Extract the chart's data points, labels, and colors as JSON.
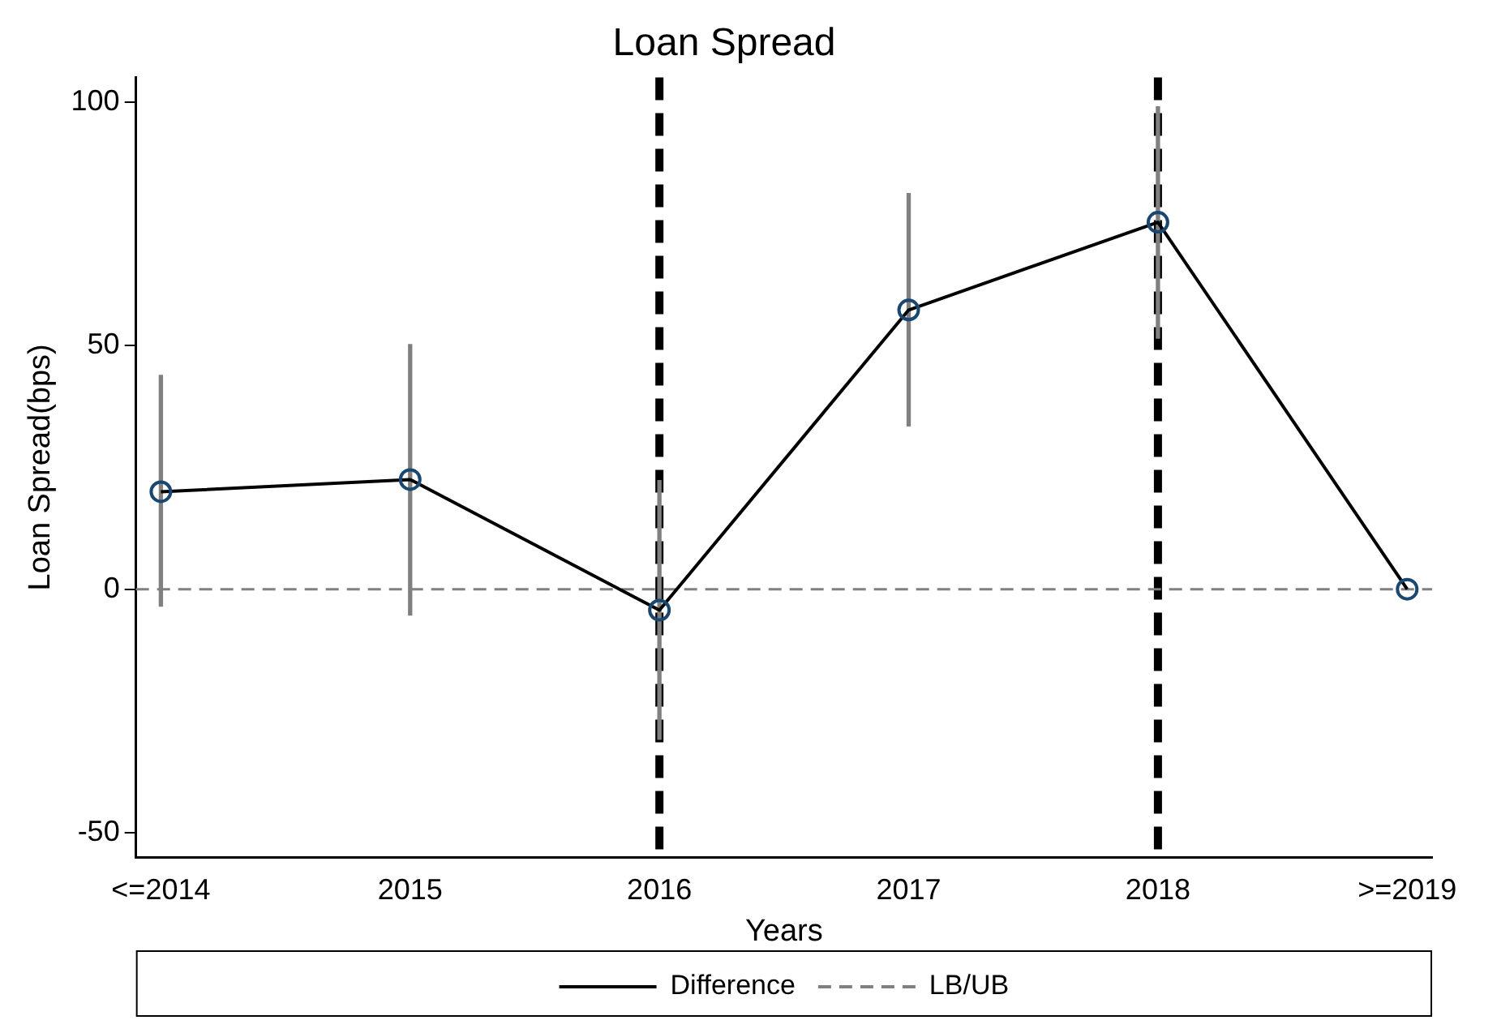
{
  "chart_data": {
    "type": "line",
    "title": "Loan Spread",
    "xlabel": "Years",
    "ylabel": "Loan Spread(bps)",
    "categories": [
      "<=2014",
      "2015",
      "2016",
      "2017",
      "2018",
      ">=2019"
    ],
    "series": [
      {
        "name": "Difference",
        "color": "#000000",
        "values": [
          20.0,
          22.5,
          -4.3,
          57.3,
          75.3,
          0
        ],
        "marker": "circle"
      },
      {
        "name": "LB/UB",
        "color": "#808080",
        "type": "bar",
        "base": [
          -3.5,
          -5.3,
          -30.8,
          33.5,
          51.5,
          null
        ],
        "values": [
          47.4,
          55.5,
          53.1,
          47.7,
          47.5,
          null
        ]
      }
    ],
    "ylim": [
      -55,
      105
    ],
    "yticks": [
      -50,
      0,
      50,
      100
    ],
    "grid": false,
    "legend": "bottom",
    "ref_lines": [
      {
        "axis": "x",
        "value": "2016",
        "color": "#000000",
        "line_style": "dashed"
      },
      {
        "axis": "x",
        "value": "2018",
        "color": "#000000",
        "line_style": "dashed"
      },
      {
        "axis": "y",
        "value": 0,
        "color": "#808080",
        "line_style": "dashed"
      }
    ]
  }
}
